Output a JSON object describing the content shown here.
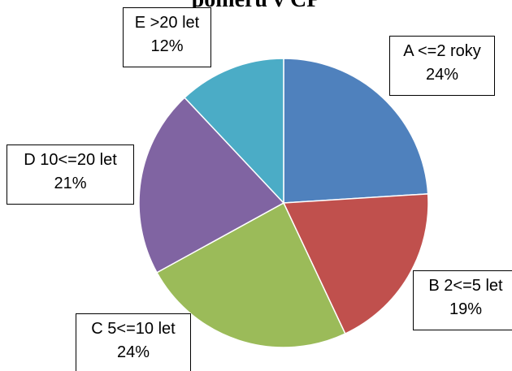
{
  "chart_data": {
    "type": "pie",
    "title": "poměrů v CP",
    "slices": [
      {
        "label": "A <=2 roky",
        "value": 24,
        "value_label": "24%",
        "color": "#4F81BD"
      },
      {
        "label": "B 2<=5 let",
        "value": 19,
        "value_label": "19%",
        "color": "#C0504D"
      },
      {
        "label": "C 5<=10 let",
        "value": 24,
        "value_label": "24%",
        "color": "#9BBB59"
      },
      {
        "label": "D 10<=20 let",
        "value": 21,
        "value_label": "21%",
        "color": "#8064A2"
      },
      {
        "label": "E >20 let",
        "value": 12,
        "value_label": "12%",
        "color": "#4BACC6"
      }
    ],
    "start_angle_deg": 0,
    "direction": "clockwise",
    "legend": "none"
  }
}
